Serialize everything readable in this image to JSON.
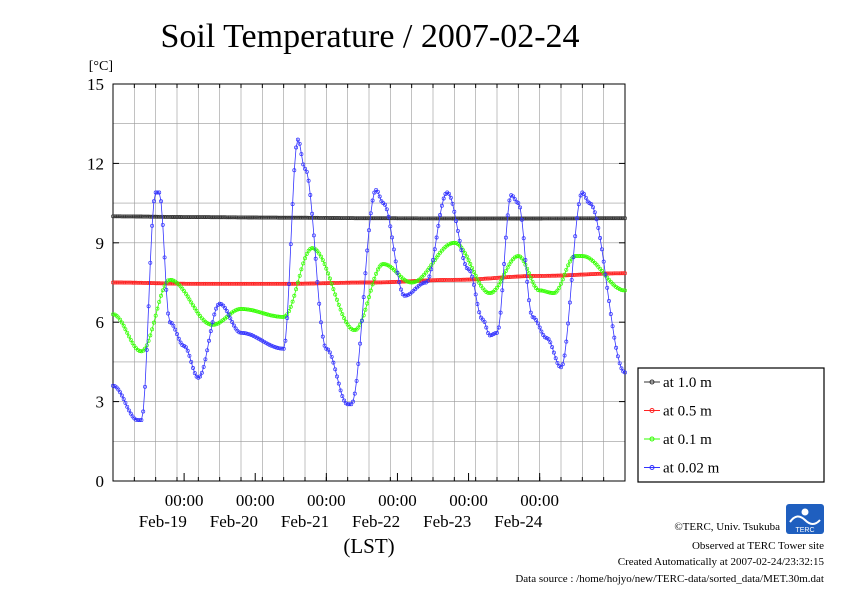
{
  "chart_data": {
    "type": "line",
    "title": "Soil Temperature / 2007-02-24",
    "ylabel": "[°C]",
    "xlabel": "(LST)",
    "ylim": [
      0,
      15
    ],
    "xlim": [
      0,
      144
    ],
    "yticks": [
      0,
      3,
      6,
      9,
      12,
      15
    ],
    "x_tick_labels": [
      {
        "x": 20,
        "time": "00:00",
        "date": "Feb-19"
      },
      {
        "x": 40,
        "time": "00:00",
        "date": "Feb-20"
      },
      {
        "x": 60,
        "time": "00:00",
        "date": "Feb-21"
      },
      {
        "x": 80,
        "time": "00:00",
        "date": "Feb-22"
      },
      {
        "x": 100,
        "time": "00:00",
        "date": "Feb-23"
      },
      {
        "x": 120,
        "time": "00:00",
        "date": "Feb-24"
      }
    ],
    "x_note": "x is hours elapsed",
    "grid": true,
    "legend_position": "right",
    "series": [
      {
        "name": "at 1.0 m",
        "color": "#333333",
        "points": [
          [
            0,
            10.0
          ],
          [
            24,
            9.97
          ],
          [
            48,
            9.95
          ],
          [
            72,
            9.93
          ],
          [
            96,
            9.92
          ],
          [
            120,
            9.92
          ],
          [
            144,
            9.93
          ]
        ]
      },
      {
        "name": "at 0.5 m",
        "color": "#ff2222",
        "points": [
          [
            0,
            7.5
          ],
          [
            24,
            7.45
          ],
          [
            48,
            7.45
          ],
          [
            72,
            7.5
          ],
          [
            96,
            7.6
          ],
          [
            120,
            7.75
          ],
          [
            144,
            7.85
          ]
        ]
      },
      {
        "name": "at 0.1 m",
        "color": "#33ff00",
        "points": [
          [
            0,
            6.3
          ],
          [
            8,
            4.9
          ],
          [
            16,
            7.6
          ],
          [
            28,
            5.9
          ],
          [
            36,
            6.5
          ],
          [
            48,
            6.2
          ],
          [
            56,
            8.8
          ],
          [
            68,
            5.7
          ],
          [
            76,
            8.2
          ],
          [
            84,
            7.5
          ],
          [
            96,
            9.0
          ],
          [
            106,
            7.1
          ],
          [
            114,
            8.5
          ],
          [
            120,
            7.2
          ],
          [
            124,
            7.1
          ],
          [
            130,
            8.5
          ],
          [
            132,
            8.5
          ],
          [
            144,
            7.2
          ]
        ]
      },
      {
        "name": "at 0.02 m",
        "color": "#3333ff",
        "points": [
          [
            0,
            3.6
          ],
          [
            7,
            2.3
          ],
          [
            8,
            2.3
          ],
          [
            12,
            10.9
          ],
          [
            13,
            10.9
          ],
          [
            16,
            6.0
          ],
          [
            20,
            5.1
          ],
          [
            24,
            3.9
          ],
          [
            30,
            6.7
          ],
          [
            36,
            5.6
          ],
          [
            48,
            5.0
          ],
          [
            52,
            12.9
          ],
          [
            54,
            11.8
          ],
          [
            60,
            5.0
          ],
          [
            66,
            2.9
          ],
          [
            67,
            2.9
          ],
          [
            74,
            11.0
          ],
          [
            76,
            10.5
          ],
          [
            82,
            7.0
          ],
          [
            88,
            7.5
          ],
          [
            94,
            10.9
          ],
          [
            100,
            8.0
          ],
          [
            104,
            6.1
          ],
          [
            106,
            5.5
          ],
          [
            108,
            5.6
          ],
          [
            112,
            10.8
          ],
          [
            114,
            10.5
          ],
          [
            118,
            6.2
          ],
          [
            122,
            5.4
          ],
          [
            126,
            4.3
          ],
          [
            132,
            10.9
          ],
          [
            134,
            10.5
          ],
          [
            144,
            4.1
          ]
        ]
      }
    ]
  },
  "credits": {
    "copyright": "©TERC, Univ. Tsukuba",
    "observed": "Observed at TERC Tower site",
    "created": "Created Automatically at 2007-02-24/23:32:15",
    "source": "Data source : /home/hojyo/new/TERC-data/sorted_data/MET.30m.dat",
    "logo_text": "TERC"
  }
}
